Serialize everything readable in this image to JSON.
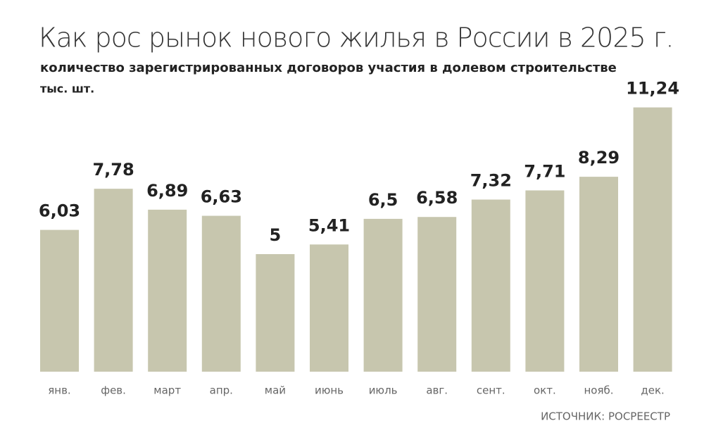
{
  "chart_data": {
    "type": "bar",
    "title": "Как рос рынок нового жилья в России в 2025 г.",
    "subtitle": "количество зарегистрированных договоров участия в долевом строительстве",
    "unit": "тыс. шт.",
    "source": "ИСТОЧНИК: РОСРЕЕСТР",
    "categories": [
      "янв.",
      "фев.",
      "март",
      "апр.",
      "май",
      "июнь",
      "июль",
      "авг.",
      "сент.",
      "окт.",
      "нояб.",
      "дек."
    ],
    "values": [
      6.03,
      7.78,
      6.89,
      6.63,
      5,
      5.41,
      6.5,
      6.58,
      7.32,
      7.71,
      8.29,
      11.24
    ],
    "value_labels": [
      "6,03",
      "7,78",
      "6,89",
      "6,63",
      "5",
      "5,41",
      "6,5",
      "6,58",
      "7,32",
      "7,71",
      "8,29",
      "11,24"
    ],
    "color": "#c7c6ae"
  }
}
